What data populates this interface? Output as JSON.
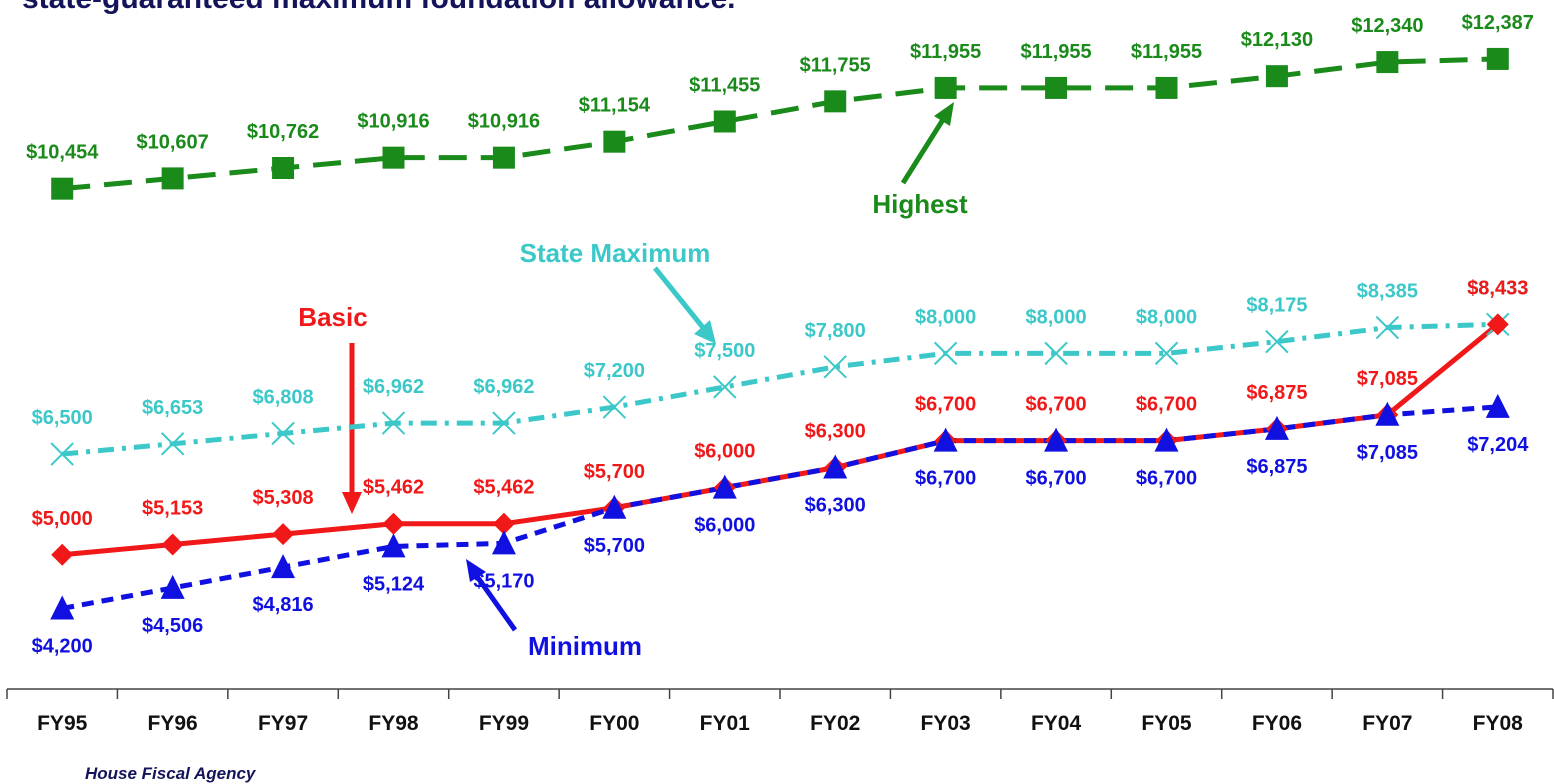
{
  "chart_data": {
    "type": "line",
    "title": "state-guaranteed maximum foundation allowance.",
    "source": "House Fiscal Agency",
    "categories": [
      "FY95",
      "FY96",
      "FY97",
      "FY98",
      "FY99",
      "FY00",
      "FY01",
      "FY02",
      "FY03",
      "FY04",
      "FY05",
      "FY06",
      "FY07",
      "FY08"
    ],
    "ylim": [
      3000,
      13250
    ],
    "series": [
      {
        "name": "Highest",
        "color": "#1a8a1a",
        "dash": "28 14",
        "marker": "square",
        "label_pos": "above",
        "values": [
          10454,
          10607,
          10762,
          10916,
          10916,
          11154,
          11455,
          11755,
          11955,
          11955,
          11955,
          12130,
          12340,
          12387
        ],
        "value_labels": [
          "$10,454",
          "$10,607",
          "$10,762",
          "$10,916",
          "$10,916",
          "$11,154",
          "$11,455",
          "$11,755",
          "$11,955",
          "$11,955",
          "$11,955",
          "$12,130",
          "$12,340",
          "$12,387"
        ]
      },
      {
        "name": "State Maximum",
        "color": "#3cc8c8",
        "dash": "16 8 4 8",
        "marker": "x",
        "label_pos": "above",
        "values": [
          6500,
          6653,
          6808,
          6962,
          6962,
          7200,
          7500,
          7800,
          8000,
          8000,
          8000,
          8175,
          8385,
          8433
        ],
        "value_labels": [
          "$6,500",
          "$6,653",
          "$6,808",
          "$6,962",
          "$6,962",
          "$7,200",
          "$7,500",
          "$7,800",
          "$8,000",
          "$8,000",
          "$8,000",
          "$8,175",
          "$8,385",
          "$8,433"
        ]
      },
      {
        "name": "Basic",
        "color": "#f01818",
        "dash": "none",
        "marker": "diamond",
        "label_pos": "above",
        "values": [
          5000,
          5153,
          5308,
          5462,
          5462,
          5700,
          6000,
          6300,
          6700,
          6700,
          6700,
          6875,
          7085,
          8433
        ],
        "value_labels": [
          "$5,000",
          "$5,153",
          "$5,308",
          "$5,462",
          "$5,462",
          "$5,700",
          "$6,000",
          "$6,300",
          "$6,700",
          "$6,700",
          "$6,700",
          "$6,875",
          "$7,085",
          "$8,433"
        ]
      },
      {
        "name": "Minimum",
        "color": "#1010e0",
        "dash": "12 8",
        "marker": "triangle",
        "label_pos": "below",
        "values": [
          4200,
          4506,
          4816,
          5124,
          5170,
          5700,
          6000,
          6300,
          6700,
          6700,
          6700,
          6875,
          7085,
          7204
        ],
        "value_labels": [
          "$4,200",
          "$4,506",
          "$4,816",
          "$5,124",
          "$5,170",
          "$5,700",
          "$6,000",
          "$6,300",
          "$6,700",
          "$6,700",
          "$6,700",
          "$6,875",
          "$7,085",
          "$7,204"
        ]
      }
    ]
  }
}
